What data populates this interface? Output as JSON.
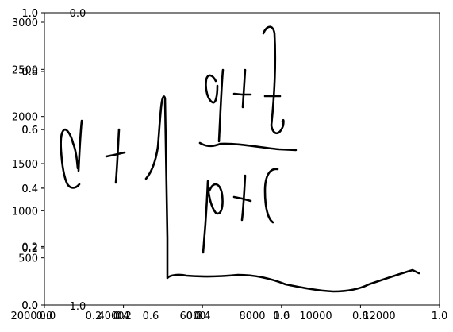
{
  "figure": {
    "title": "",
    "stroke_color": "#000000",
    "background": "#ffffff"
  },
  "overlay_axes": {
    "top_label": "0.0",
    "bottom_left_label": "1.0",
    "x_ticks": [
      "0.0",
      "0.2",
      "0.4",
      "0.6",
      "0.8",
      "1.0"
    ],
    "y_ticks": [
      "0.0",
      "0.2",
      "0.4",
      "0.6",
      "0.8",
      "1.0"
    ]
  },
  "data_axes": {
    "y_ticks": [
      "0",
      "500",
      "1000",
      "1500",
      "2000",
      "2500",
      "3000"
    ],
    "x_ticks": [
      "2000",
      "4000",
      "6000",
      "8000",
      "10000",
      "12000"
    ]
  },
  "inner_axes": {
    "x_ticks": [
      "0.0",
      "0.2",
      "0.4",
      "0.6",
      "0.8",
      "1.0"
    ],
    "y_ticks": [
      "0.0",
      "0.2",
      "0.4",
      "0.6",
      "0.8",
      "1.0"
    ]
  },
  "handwriting": {
    "expression": "a + ∫ (q+t)/(p+C)",
    "strokes": [
      "a-letter",
      "plus-sign-1",
      "integral-sign",
      "q-letter",
      "plus-sign-2",
      "t-letter",
      "fraction-bar",
      "p-letter",
      "plus-sign-3",
      "c-letter"
    ]
  }
}
